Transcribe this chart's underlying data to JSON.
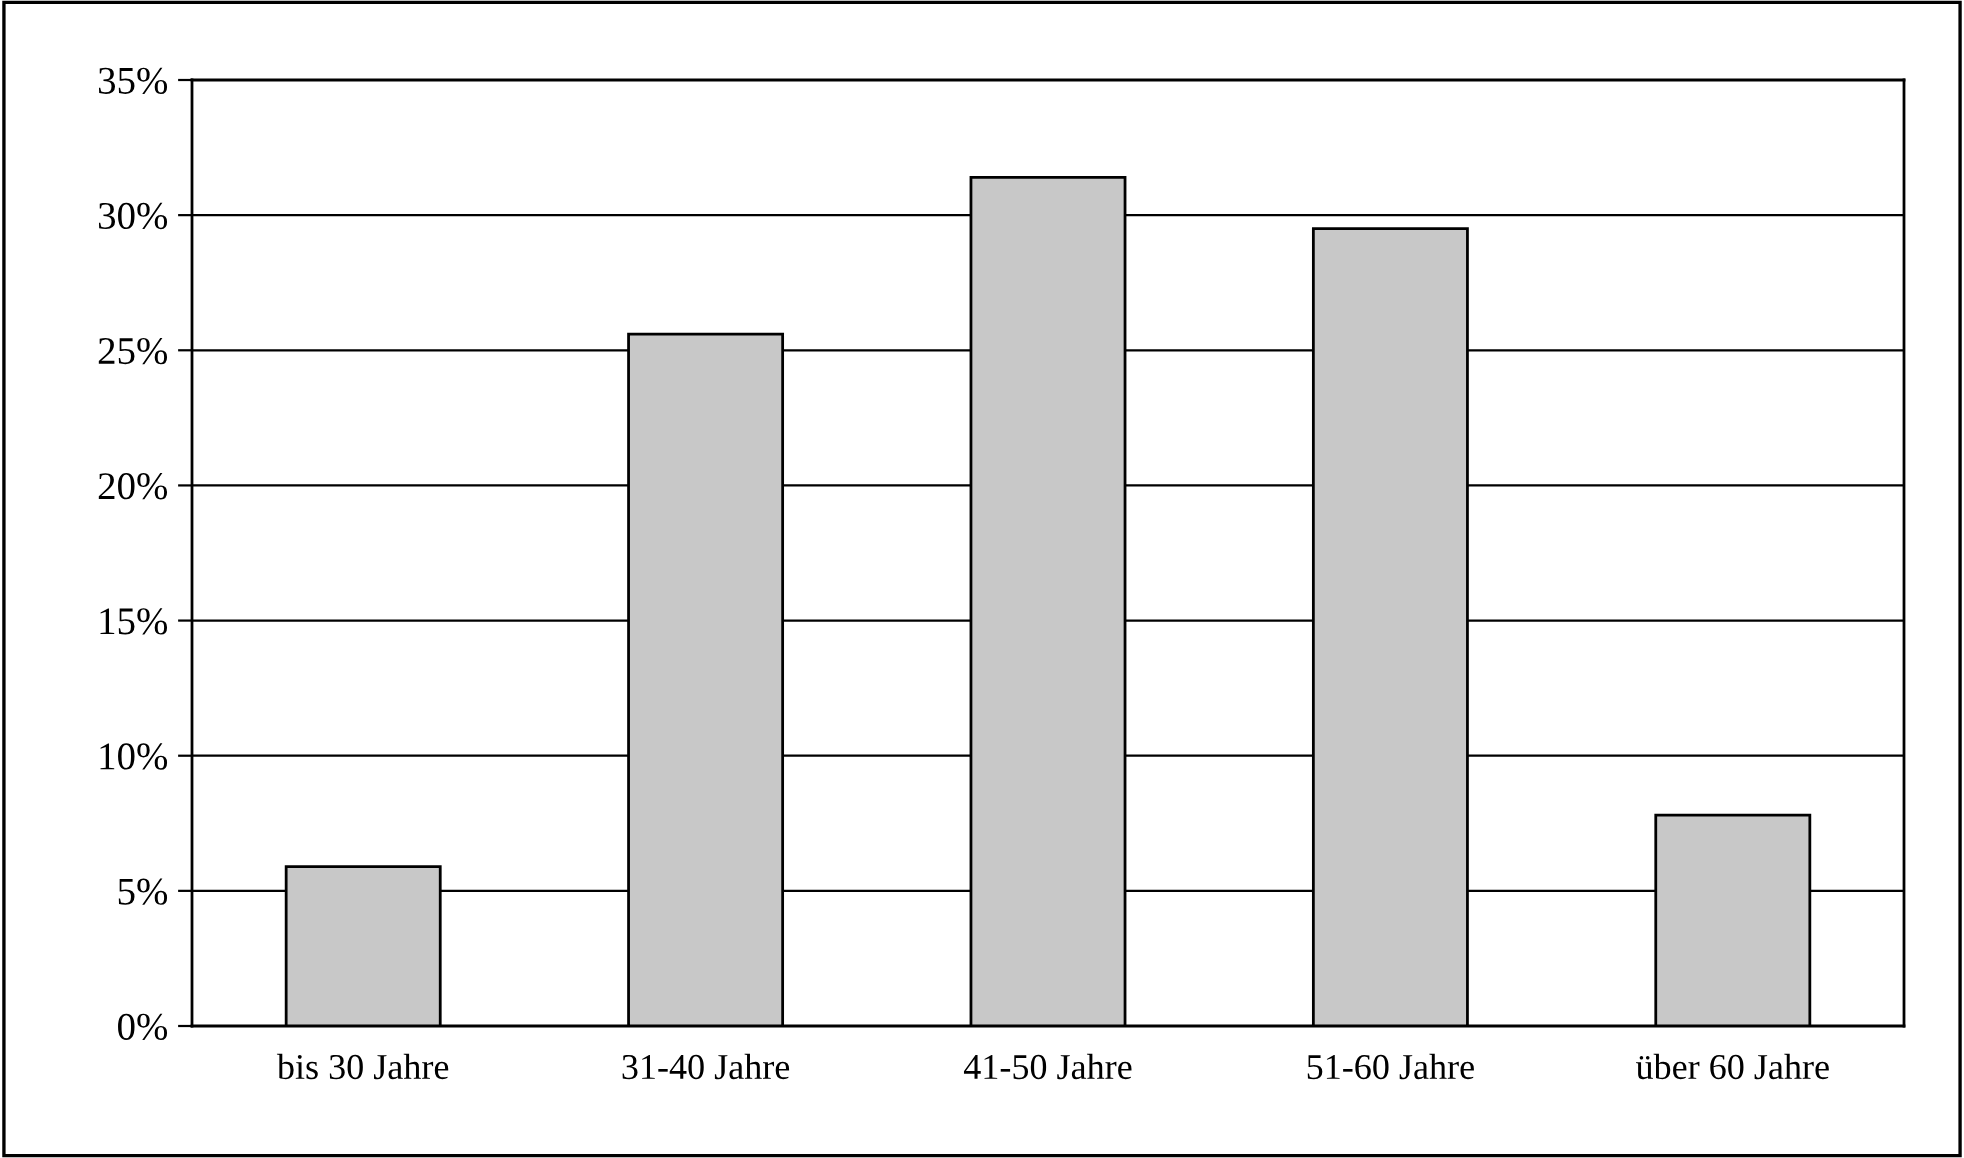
{
  "chart_data": {
    "type": "bar",
    "categories": [
      "bis 30 Jahre",
      "31-40 Jahre",
      "41-50 Jahre",
      "51-60 Jahre",
      "über 60 Jahre"
    ],
    "values": [
      5.9,
      25.6,
      31.4,
      29.5,
      7.8
    ],
    "color": "#c8c8c8",
    "ylim": [
      0,
      35
    ],
    "yticks": [
      {
        "value": 0,
        "label": "0%"
      },
      {
        "value": 5,
        "label": "5%"
      },
      {
        "value": 10,
        "label": "10%"
      },
      {
        "value": 15,
        "label": "15%"
      },
      {
        "value": 20,
        "label": "20%"
      },
      {
        "value": 25,
        "label": "25%"
      },
      {
        "value": 30,
        "label": "30%"
      },
      {
        "value": 35,
        "label": "35%"
      }
    ],
    "grid": "y",
    "legend": false
  }
}
